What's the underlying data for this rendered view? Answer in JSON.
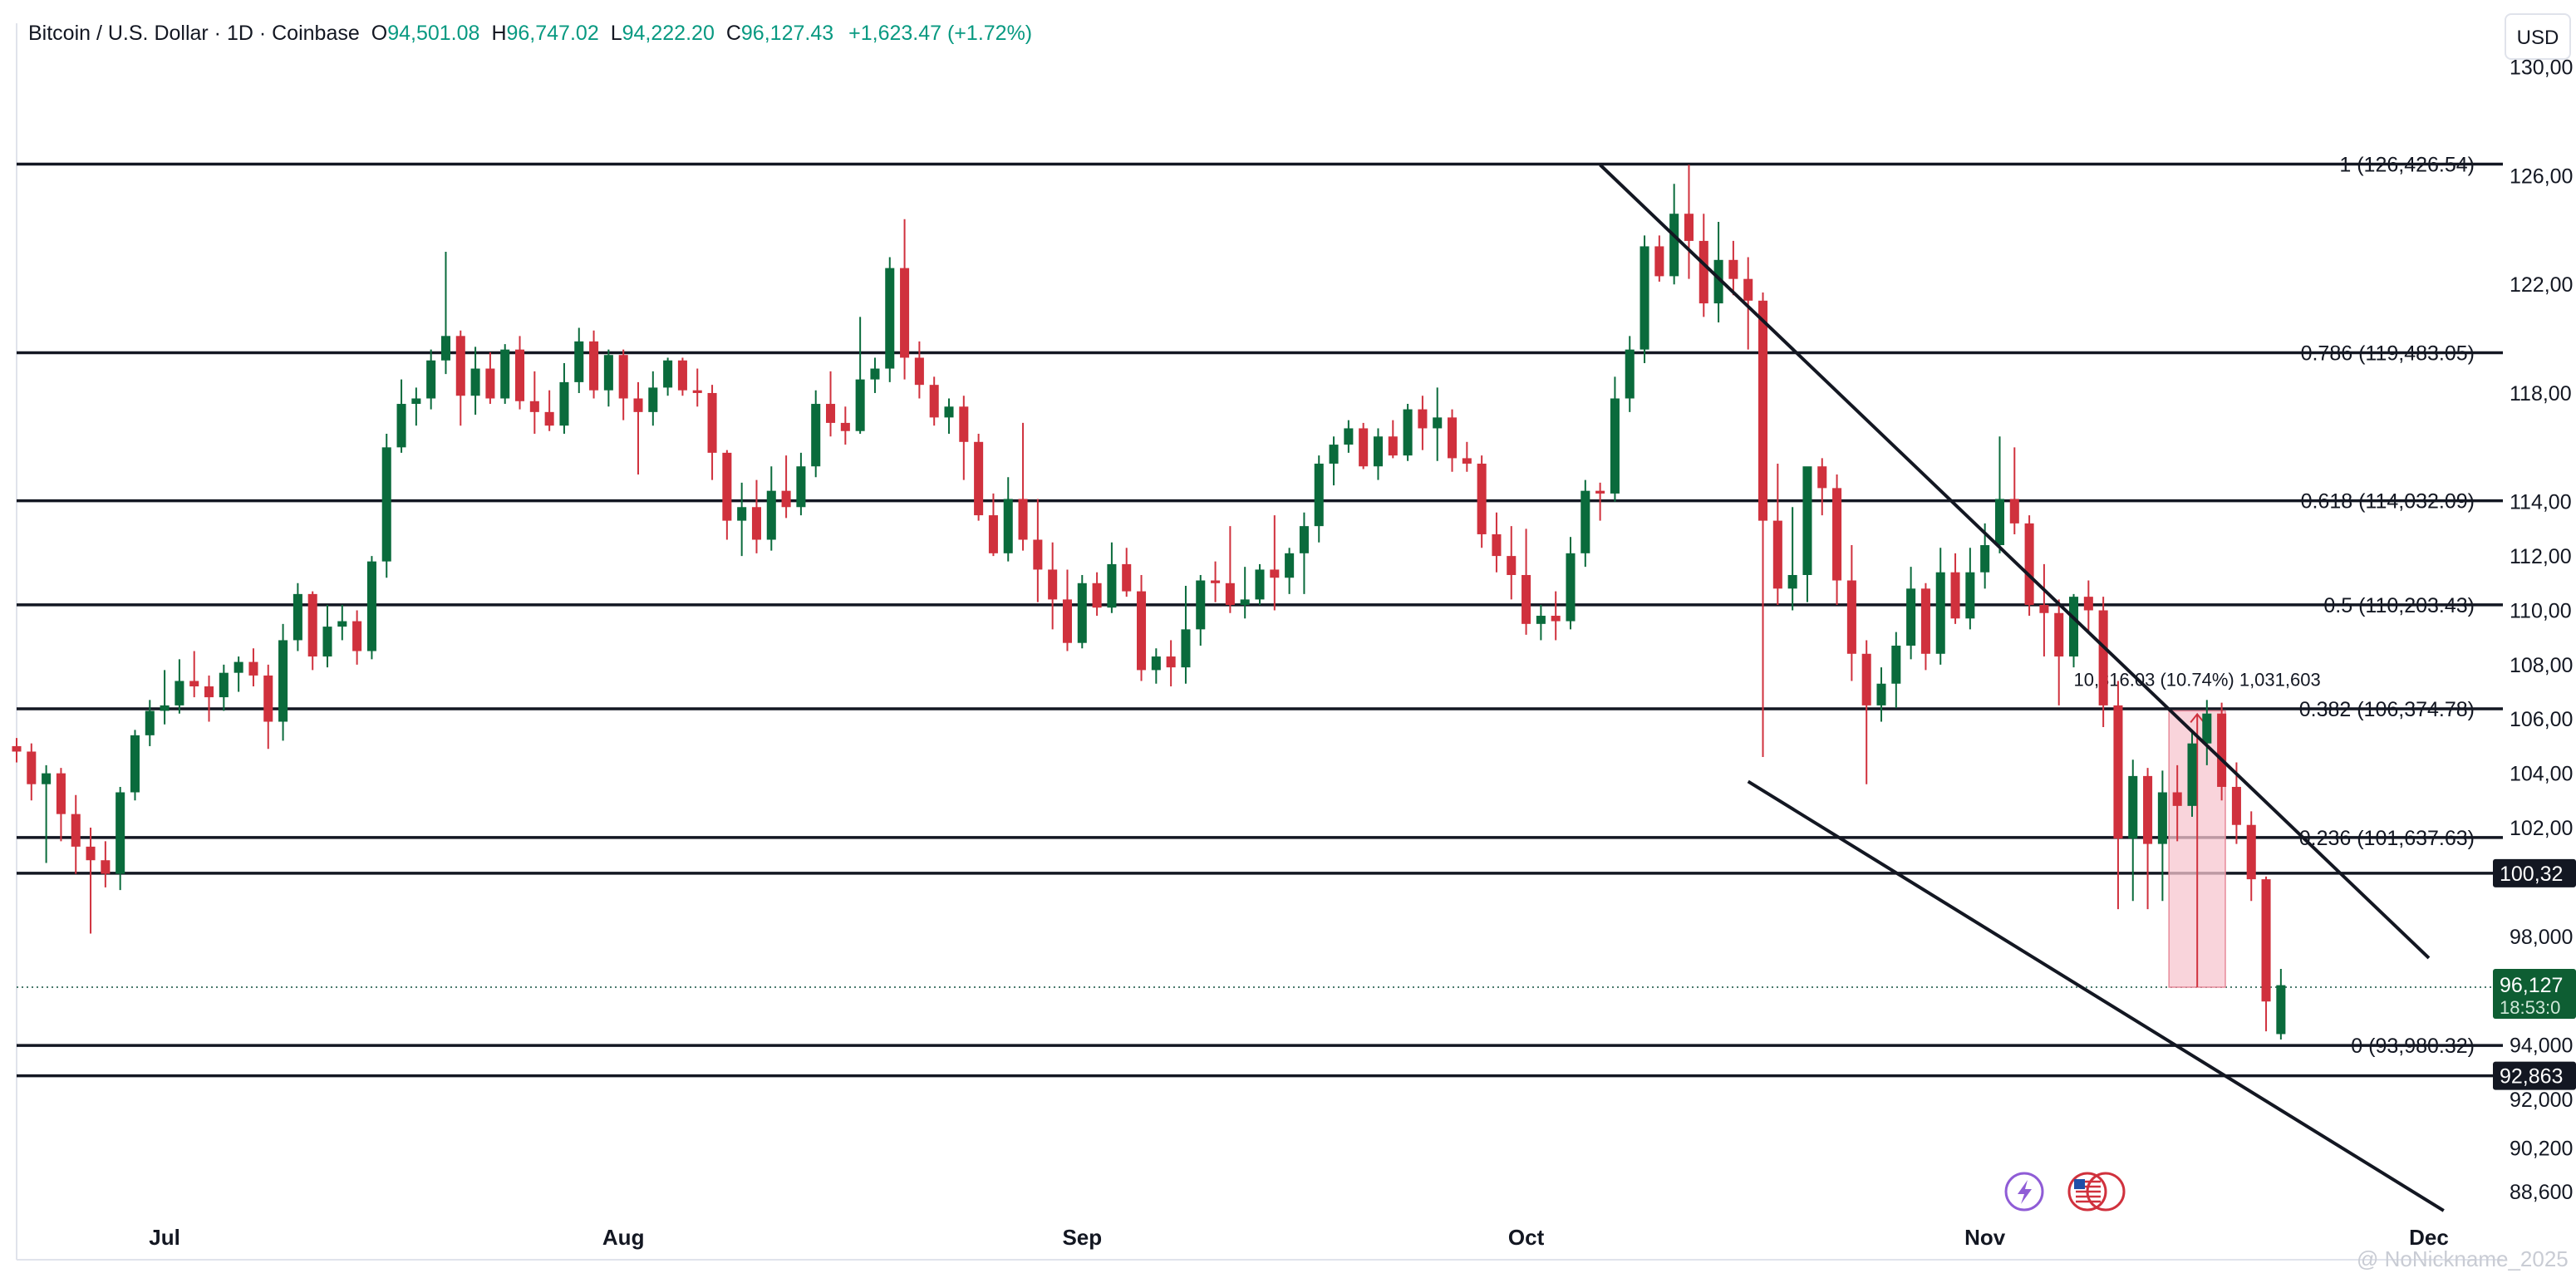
{
  "header": {
    "symbol": "Bitcoin / U.S. Dollar · 1D · Coinbase",
    "open_label": "O",
    "open": "94,501.08",
    "high_label": "H",
    "high": "96,747.02",
    "low_label": "L",
    "low": "94,222.20",
    "close_label": "C",
    "close": "96,127.43",
    "change": "+1,623.47 (+1.72%)"
  },
  "currency": "USD",
  "watermark": "@ NoNickname_2025",
  "colors": {
    "up": "#0a6b3c",
    "down": "#d0313d",
    "line": "#131722",
    "range_fill": "#f7c6cf",
    "axis_text": "#131722"
  },
  "chart_data": {
    "type": "candlestick",
    "x_axis": {
      "type": "date",
      "start": "2025-06-21",
      "end": "2025-12-06",
      "ticks": [
        "Jul",
        "Aug",
        "Sep",
        "Oct",
        "Nov",
        "Dec"
      ],
      "tick_dates": [
        "2025-07-01",
        "2025-08-01",
        "2025-09-01",
        "2025-10-01",
        "2025-11-01",
        "2025-12-01"
      ]
    },
    "y_axis": {
      "range": [
        87500,
        131000
      ],
      "side": "right",
      "ticks": [
        "130,00",
        "126,00",
        "122,00",
        "118,00",
        "114,00",
        "112,00",
        "110,00",
        "108,00",
        "106,00",
        "104,00",
        "102,00",
        "98,000",
        "94,000",
        "92,000",
        "90,200",
        "88,600"
      ],
      "tick_values": [
        130000,
        126000,
        122000,
        118000,
        114000,
        112000,
        110000,
        108000,
        106000,
        104000,
        102000,
        98000,
        94000,
        92000,
        90200,
        88600
      ]
    },
    "candles_start_date": "2025-06-21",
    "candles": [
      [
        105000,
        105300,
        104400,
        104800
      ],
      [
        104800,
        105100,
        103000,
        103600
      ],
      [
        103600,
        104300,
        100700,
        104000
      ],
      [
        104000,
        104200,
        101500,
        102500
      ],
      [
        102500,
        103200,
        100300,
        101300
      ],
      [
        101300,
        102000,
        98100,
        100800
      ],
      [
        100800,
        101500,
        99800,
        100300
      ],
      [
        100300,
        103500,
        99700,
        103300
      ],
      [
        103300,
        105600,
        103000,
        105400
      ],
      [
        105400,
        106700,
        105000,
        106300
      ],
      [
        106300,
        107800,
        105800,
        106500
      ],
      [
        106500,
        108200,
        106200,
        107400
      ],
      [
        107400,
        108500,
        106800,
        107200
      ],
      [
        107200,
        107600,
        105900,
        106800
      ],
      [
        106800,
        108000,
        106300,
        107700
      ],
      [
        107700,
        108300,
        107000,
        108100
      ],
      [
        108100,
        108600,
        107200,
        107600
      ],
      [
        107600,
        108000,
        104900,
        105900
      ],
      [
        105900,
        109500,
        105200,
        108900
      ],
      [
        108900,
        111000,
        108500,
        110600
      ],
      [
        110600,
        110700,
        107800,
        108300
      ],
      [
        108300,
        110200,
        107900,
        109400
      ],
      [
        109400,
        110200,
        108900,
        109600
      ],
      [
        109600,
        110000,
        108000,
        108500
      ],
      [
        108500,
        112000,
        108200,
        111800
      ],
      [
        111800,
        116500,
        111200,
        116000
      ],
      [
        116000,
        118500,
        115800,
        117600
      ],
      [
        117600,
        118200,
        116800,
        117800
      ],
      [
        117800,
        119600,
        117400,
        119200
      ],
      [
        119200,
        123200,
        118700,
        120100
      ],
      [
        120100,
        120300,
        116800,
        117900
      ],
      [
        117900,
        119700,
        117200,
        118900
      ],
      [
        118900,
        119500,
        117600,
        117800
      ],
      [
        117800,
        119800,
        117600,
        119600
      ],
      [
        119600,
        120100,
        117400,
        117700
      ],
      [
        117700,
        118800,
        116500,
        117300
      ],
      [
        117300,
        118100,
        116600,
        116800
      ],
      [
        116800,
        119100,
        116500,
        118400
      ],
      [
        118400,
        120400,
        118000,
        119900
      ],
      [
        119900,
        120300,
        117800,
        118100
      ],
      [
        118100,
        119600,
        117500,
        119400
      ],
      [
        119400,
        119600,
        117000,
        117800
      ],
      [
        117800,
        118400,
        115000,
        117300
      ],
      [
        117300,
        118800,
        116800,
        118200
      ],
      [
        118200,
        119300,
        117900,
        119200
      ],
      [
        119200,
        119300,
        117900,
        118100
      ],
      [
        118100,
        118900,
        117500,
        118000
      ],
      [
        118000,
        118300,
        114800,
        115800
      ],
      [
        115800,
        115900,
        112600,
        113300
      ],
      [
        113300,
        114700,
        112000,
        113800
      ],
      [
        113800,
        114800,
        112100,
        112600
      ],
      [
        112600,
        115300,
        112200,
        114400
      ],
      [
        114400,
        115700,
        113400,
        113800
      ],
      [
        113800,
        115800,
        113500,
        115300
      ],
      [
        115300,
        118100,
        114900,
        117600
      ],
      [
        117600,
        118800,
        116400,
        116900
      ],
      [
        116900,
        117500,
        116100,
        116600
      ],
      [
        116600,
        120800,
        116500,
        118500
      ],
      [
        118500,
        119300,
        118000,
        118900
      ],
      [
        118900,
        123000,
        118400,
        122600
      ],
      [
        122600,
        124400,
        118500,
        119300
      ],
      [
        119300,
        119900,
        117800,
        118300
      ],
      [
        118300,
        118600,
        116800,
        117100
      ],
      [
        117100,
        117800,
        116500,
        117500
      ],
      [
        117500,
        117900,
        114800,
        116200
      ],
      [
        116200,
        116500,
        113300,
        113500
      ],
      [
        113500,
        114300,
        112000,
        112100
      ],
      [
        112100,
        114900,
        111800,
        114100
      ],
      [
        114100,
        116900,
        112200,
        112600
      ],
      [
        112600,
        114100,
        110300,
        111500
      ],
      [
        111500,
        112500,
        109300,
        110400
      ],
      [
        110400,
        111500,
        108500,
        108800
      ],
      [
        108800,
        111300,
        108600,
        111000
      ],
      [
        111000,
        111400,
        109800,
        110100
      ],
      [
        110100,
        112500,
        109900,
        111700
      ],
      [
        111700,
        112300,
        110500,
        110700
      ],
      [
        110700,
        111300,
        107400,
        107800
      ],
      [
        107800,
        108600,
        107300,
        108300
      ],
      [
        108300,
        108900,
        107200,
        107900
      ],
      [
        107900,
        110900,
        107300,
        109300
      ],
      [
        109300,
        111300,
        108700,
        111100
      ],
      [
        111100,
        111800,
        110300,
        111000
      ],
      [
        111000,
        113100,
        109900,
        110200
      ],
      [
        110200,
        111600,
        109700,
        110400
      ],
      [
        110400,
        111700,
        110200,
        111500
      ],
      [
        111500,
        113500,
        110000,
        111200
      ],
      [
        111200,
        112300,
        110600,
        112100
      ],
      [
        112100,
        113600,
        110600,
        113100
      ],
      [
        113100,
        115700,
        112500,
        115400
      ],
      [
        115400,
        116400,
        114600,
        116100
      ],
      [
        116100,
        117000,
        115800,
        116700
      ],
      [
        116700,
        116900,
        115200,
        115300
      ],
      [
        115300,
        116700,
        114800,
        116400
      ],
      [
        116400,
        117000,
        115600,
        115700
      ],
      [
        115700,
        117600,
        115500,
        117400
      ],
      [
        117400,
        117900,
        115900,
        116700
      ],
      [
        116700,
        118200,
        115500,
        117100
      ],
      [
        117100,
        117400,
        115100,
        115600
      ],
      [
        115600,
        116200,
        115100,
        115400
      ],
      [
        115400,
        115700,
        112300,
        112800
      ],
      [
        112800,
        113600,
        111400,
        112000
      ],
      [
        112000,
        113100,
        110400,
        111300
      ],
      [
        111300,
        113000,
        109100,
        109500
      ],
      [
        109500,
        110200,
        108900,
        109800
      ],
      [
        109800,
        110700,
        108900,
        109600
      ],
      [
        109600,
        112700,
        109300,
        112100
      ],
      [
        112100,
        114800,
        111600,
        114400
      ],
      [
        114400,
        114700,
        113300,
        114300
      ],
      [
        114300,
        118600,
        114000,
        117800
      ],
      [
        117800,
        120100,
        117300,
        119600
      ],
      [
        119600,
        123800,
        119100,
        123400
      ],
      [
        123400,
        123800,
        122100,
        122300
      ],
      [
        122300,
        125700,
        122000,
        124600
      ],
      [
        124600,
        126400,
        122200,
        123600
      ],
      [
        123600,
        124600,
        120800,
        121300
      ],
      [
        121300,
        124300,
        120600,
        122900
      ],
      [
        122900,
        123600,
        121600,
        122200
      ],
      [
        122200,
        123000,
        119600,
        121400
      ],
      [
        121400,
        121700,
        104600,
        113300
      ],
      [
        113300,
        115400,
        110200,
        110800
      ],
      [
        110800,
        113800,
        110000,
        111300
      ],
      [
        111300,
        115000,
        110300,
        115300
      ],
      [
        115300,
        115600,
        113500,
        114500
      ],
      [
        114500,
        115000,
        110200,
        111100
      ],
      [
        111100,
        112400,
        107400,
        108400
      ],
      [
        108400,
        108900,
        103600,
        106500
      ],
      [
        106500,
        107900,
        105900,
        107300
      ],
      [
        107300,
        109200,
        106400,
        108700
      ],
      [
        108700,
        111600,
        108200,
        110800
      ],
      [
        110800,
        111000,
        107800,
        108400
      ],
      [
        108400,
        112300,
        108000,
        111400
      ],
      [
        111400,
        112100,
        109500,
        109700
      ],
      [
        109700,
        112300,
        109300,
        111400
      ],
      [
        111400,
        113200,
        110800,
        112400
      ],
      [
        112400,
        116400,
        112100,
        114100
      ],
      [
        114100,
        116000,
        112800,
        113200
      ],
      [
        113200,
        113500,
        109800,
        110200
      ],
      [
        110200,
        111700,
        108300,
        109900
      ],
      [
        109900,
        110400,
        106500,
        108300
      ],
      [
        108300,
        110600,
        107900,
        110500
      ],
      [
        110500,
        111100,
        109200,
        110000
      ],
      [
        110000,
        110500,
        105700,
        106500
      ],
      [
        106500,
        107400,
        99000,
        101600
      ],
      [
        101600,
        104500,
        99300,
        103900
      ],
      [
        103900,
        104200,
        99000,
        101400
      ],
      [
        101400,
        104100,
        99300,
        103300
      ],
      [
        103300,
        104300,
        101500,
        102800
      ],
      [
        102800,
        105600,
        102400,
        105100
      ],
      [
        105100,
        106700,
        104300,
        106200
      ],
      [
        106200,
        106600,
        103000,
        103500
      ],
      [
        103500,
        104400,
        101400,
        102100
      ],
      [
        102100,
        102600,
        99300,
        100100
      ],
      [
        100100,
        100200,
        94500,
        95600
      ],
      [
        94400,
        96800,
        94200,
        96200
      ]
    ],
    "fibonacci": [
      {
        "level": "1",
        "price": 126426.54,
        "label": "1 (126,426.54)"
      },
      {
        "level": "0.786",
        "price": 119483.05,
        "label": "0.786 (119,483.05)"
      },
      {
        "level": "0.618",
        "price": 114032.09,
        "label": "0.618 (114,032.09)"
      },
      {
        "level": "0.5",
        "price": 110203.43,
        "label": "0.5 (110,203.43)"
      },
      {
        "level": "0.382",
        "price": 106374.78,
        "label": "0.382 (106,374.78)"
      },
      {
        "level": "0.236",
        "price": 101637.63,
        "label": "0.236 (101,637.63)"
      },
      {
        "level": "0",
        "price": 93980.32,
        "label": "0 (93,980.32)"
      }
    ],
    "horizontal_lines": [
      {
        "price": 100321,
        "label": "100,32"
      },
      {
        "price": 92863,
        "label": "92,863"
      }
    ],
    "trendlines": [
      {
        "from": {
          "date": "2025-10-06",
          "price": 126400
        },
        "to": {
          "date": "2025-12-01",
          "price": 97200
        }
      },
      {
        "from": {
          "date": "2025-10-16",
          "price": 103700
        },
        "to": {
          "date": "2025-12-02",
          "price": 87900
        }
      }
    ],
    "last_price": {
      "value": 96127,
      "label": "96,127",
      "countdown": "18:53:0",
      "line_start_date": "2025-06-21"
    },
    "measure_box": {
      "start_date": "2025-11-14",
      "end_date": "2025-11-15",
      "low": 96127,
      "high": 106300,
      "text": "10,316.03 (10.74%) 1,031,603"
    },
    "x_tick_labels": [
      "Jul",
      "Aug",
      "Sep",
      "Oct",
      "Nov",
      "Dec"
    ]
  }
}
